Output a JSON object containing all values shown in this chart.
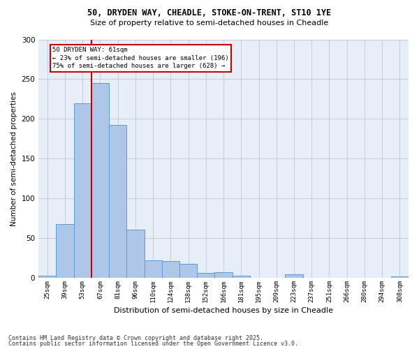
{
  "title1": "50, DRYDEN WAY, CHEADLE, STOKE-ON-TRENT, ST10 1YE",
  "title2": "Size of property relative to semi-detached houses in Cheadle",
  "xlabel": "Distribution of semi-detached houses by size in Cheadle",
  "ylabel": "Number of semi-detached properties",
  "categories": [
    "25sqm",
    "39sqm",
    "53sqm",
    "67sqm",
    "81sqm",
    "96sqm",
    "110sqm",
    "124sqm",
    "138sqm",
    "152sqm",
    "166sqm",
    "181sqm",
    "195sqm",
    "209sqm",
    "223sqm",
    "237sqm",
    "251sqm",
    "266sqm",
    "280sqm",
    "294sqm",
    "308sqm"
  ],
  "values": [
    3,
    68,
    220,
    245,
    192,
    61,
    22,
    21,
    18,
    6,
    7,
    3,
    0,
    0,
    4,
    0,
    0,
    0,
    0,
    0,
    2
  ],
  "bar_color": "#aec6e8",
  "bar_edge_color": "#5b9bd5",
  "grid_color": "#c8d0e0",
  "vline_color": "#cc0000",
  "vline_pos": 2.5,
  "annotation_text": "50 DRYDEN WAY: 61sqm\n← 23% of semi-detached houses are smaller (196)\n75% of semi-detached houses are larger (628) →",
  "annotation_box_edgecolor": "#cc0000",
  "footer1": "Contains HM Land Registry data © Crown copyright and database right 2025.",
  "footer2": "Contains public sector information licensed under the Open Government Licence v3.0.",
  "ylim": [
    0,
    300
  ],
  "yticks": [
    0,
    50,
    100,
    150,
    200,
    250,
    300
  ],
  "bg_color": "#e8eef8"
}
